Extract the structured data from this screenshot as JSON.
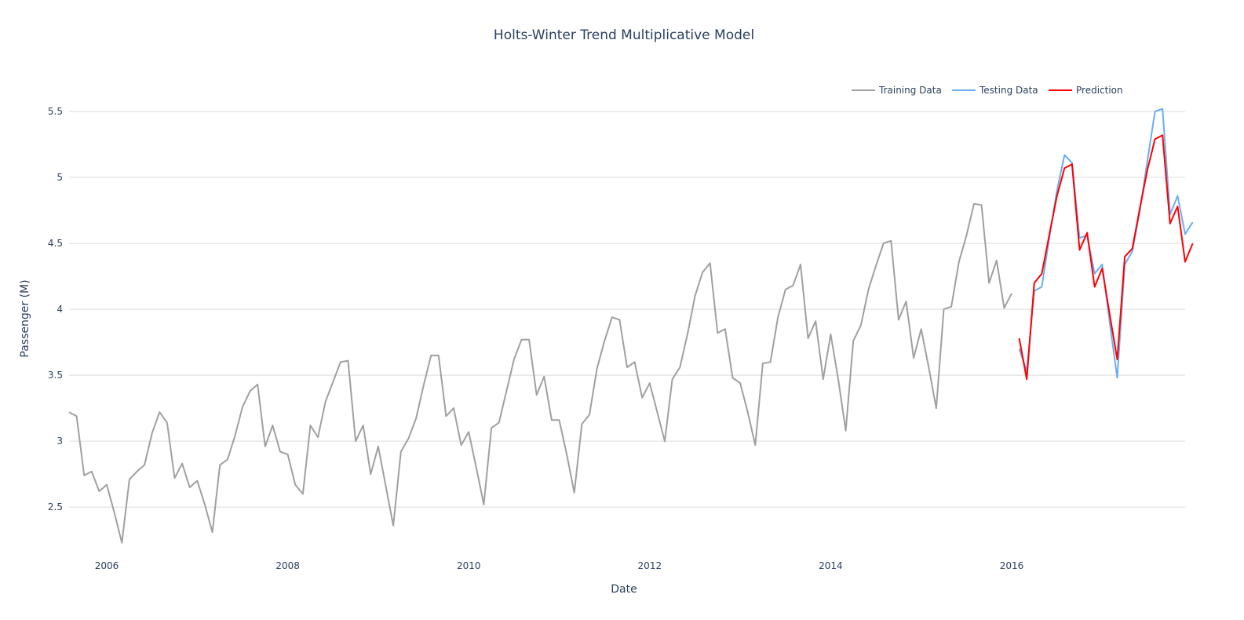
{
  "chart_data": {
    "type": "line",
    "title": "Holts-Winter Trend Multiplicative Model",
    "xlabel": "Date",
    "ylabel": "Passenger (M)",
    "xlim": [
      "2005-08",
      "2017-12"
    ],
    "ylim": [
      2.15,
      5.75
    ],
    "x_ticks": [
      "2006",
      "2008",
      "2010",
      "2012",
      "2014",
      "2016"
    ],
    "y_ticks": [
      "2.5",
      "3",
      "3.5",
      "4",
      "4.5",
      "5",
      "5.5"
    ],
    "grid": "horizontal",
    "legend_position": "top-right",
    "series": [
      {
        "name": "Training Data",
        "color": "#a0a0a0",
        "start": "2005-08",
        "values": [
          3.22,
          3.19,
          2.74,
          2.77,
          2.62,
          2.67,
          2.46,
          2.23,
          2.71,
          2.77,
          2.82,
          3.06,
          3.22,
          3.14,
          2.72,
          2.83,
          2.65,
          2.7,
          2.52,
          2.31,
          2.82,
          2.86,
          3.04,
          3.26,
          3.38,
          3.43,
          2.96,
          3.12,
          2.92,
          2.9,
          2.67,
          2.6,
          3.12,
          3.03,
          3.3,
          3.45,
          3.6,
          3.61,
          3.0,
          3.12,
          2.75,
          2.96,
          2.66,
          2.36,
          2.92,
          3.02,
          3.17,
          3.42,
          3.65,
          3.65,
          3.19,
          3.25,
          2.97,
          3.07,
          2.8,
          2.52,
          3.1,
          3.14,
          3.38,
          3.62,
          3.77,
          3.77,
          3.35,
          3.49,
          3.16,
          3.16,
          2.9,
          2.61,
          3.13,
          3.2,
          3.55,
          3.76,
          3.94,
          3.92,
          3.56,
          3.6,
          3.33,
          3.44,
          3.22,
          3.0,
          3.47,
          3.56,
          3.81,
          4.1,
          4.28,
          4.35,
          3.82,
          3.85,
          3.48,
          3.44,
          3.22,
          2.97,
          3.59,
          3.6,
          3.94,
          4.15,
          4.18,
          4.34,
          3.78,
          3.91,
          3.47,
          3.81,
          3.47,
          3.08,
          3.76,
          3.88,
          4.15,
          4.33,
          4.5,
          4.52,
          3.92,
          4.06,
          3.63,
          3.85,
          3.56,
          3.25,
          4.0,
          4.02,
          4.36,
          4.56,
          4.8,
          4.79,
          4.2,
          4.37,
          4.01,
          4.12
        ]
      },
      {
        "name": "Testing Data",
        "color": "#6aaef2",
        "start": "2016-02",
        "values": [
          3.7,
          3.53,
          4.14,
          4.17,
          4.55,
          4.9,
          5.17,
          5.11,
          4.54,
          4.56,
          4.27,
          4.34,
          3.9,
          3.48,
          4.34,
          4.44,
          4.75,
          5.13,
          5.5,
          5.52,
          4.72,
          4.86,
          4.57,
          4.66
        ]
      },
      {
        "name": "Prediction",
        "color": "#ff0000",
        "start": "2016-02",
        "values": [
          3.78,
          3.47,
          4.2,
          4.27,
          4.57,
          4.86,
          5.07,
          5.1,
          4.45,
          4.58,
          4.17,
          4.31,
          3.96,
          3.62,
          4.4,
          4.46,
          4.77,
          5.06,
          5.29,
          5.32,
          4.65,
          4.78,
          4.36,
          4.5
        ]
      }
    ]
  }
}
